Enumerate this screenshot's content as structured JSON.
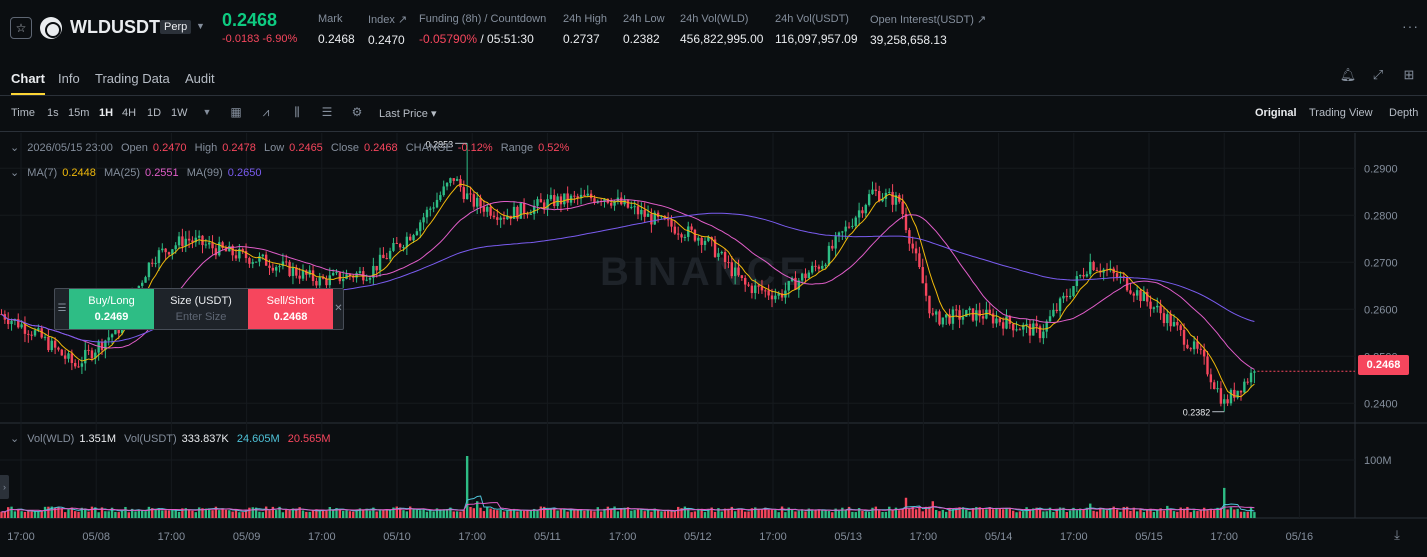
{
  "header": {
    "symbol": "WLDUSDT",
    "contract_type": "Perp",
    "last_price": "0.2468",
    "change": "-0.0183",
    "change_pct": "-6.90%",
    "stats": [
      {
        "label": "Mark",
        "value": "0.2468"
      },
      {
        "label": "Index ↗",
        "value": "0.2470"
      },
      {
        "label": "Funding (8h) / Countdown",
        "value_red": "-0.05790%",
        "value": "/ 05:51:30"
      },
      {
        "label": "24h High",
        "value": "0.2737"
      },
      {
        "label": "24h Low",
        "value": "0.2382"
      },
      {
        "label": "24h Vol(WLD)",
        "value": "456,822,995.00"
      },
      {
        "label": "24h Vol(USDT)",
        "value": "116,097,957.09"
      },
      {
        "label": "Open Interest(USDT) ↗",
        "value": "39,258,658.13"
      }
    ],
    "more": "···"
  },
  "tabs": [
    "Chart",
    "Info",
    "Trading Data",
    "Audit"
  ],
  "toolbar": {
    "intervals": [
      "Time",
      "1s",
      "15m",
      "1H",
      "4H",
      "1D",
      "1W"
    ],
    "active_interval": "1H",
    "price_type": "Last Price ▾",
    "views": [
      "Original",
      "Trading View",
      "Depth"
    ],
    "active_view": "Original"
  },
  "ohlc_legend": {
    "datetime": "2026/05/15 23:00",
    "open_label": "Open",
    "open": "0.2470",
    "high_label": "High",
    "high": "0.2478",
    "low_label": "Low",
    "low": "0.2465",
    "close_label": "Close",
    "close": "0.2468",
    "change_label": "CHANGE",
    "change": "-0.12%",
    "range_label": "Range",
    "range": "0.52%"
  },
  "ma_legend": {
    "ma7_label": "MA(7)",
    "ma7": "0.2448",
    "ma25_label": "MA(25)",
    "ma25": "0.2551",
    "ma99_label": "MA(99)",
    "ma99": "0.2650"
  },
  "vol_legend": {
    "vol_wld_label": "Vol(WLD)",
    "vol_wld": "1.351M",
    "vol_usdt_label": "Vol(USDT)",
    "vol_usdt": "333.837K",
    "ma5": "24.605M",
    "ma10": "20.565M"
  },
  "trade_panel": {
    "buy_label": "Buy/Long",
    "buy_price": "0.2469",
    "size_label": "Size (USDT)",
    "size_placeholder": "Enter Size",
    "sell_label": "Sell/Short",
    "sell_price": "0.2468"
  },
  "chart_data": {
    "type": "candlestick",
    "price_axis": {
      "ticks": [
        "0.2900",
        "0.2800",
        "0.2700",
        "0.2600",
        "0.2500",
        "0.2400"
      ],
      "range": [
        0.2358,
        0.2975
      ]
    },
    "volume_axis": {
      "ticks": [
        "100M"
      ]
    },
    "time_axis": {
      "ticks": [
        "17:00",
        "05/08",
        "17:00",
        "05/09",
        "17:00",
        "05/10",
        "17:00",
        "05/11",
        "17:00",
        "05/12",
        "17:00",
        "05/13",
        "17:00",
        "05/14",
        "17:00",
        "05/15",
        "17:00",
        "05/16"
      ]
    },
    "current_price": "0.2468",
    "annotations": [
      {
        "label": "0.2953",
        "value": 0.2953
      },
      {
        "label": "0.2382",
        "value": 0.2382
      }
    ],
    "price_anchors": [
      [
        0,
        0.259
      ],
      [
        10,
        0.255
      ],
      [
        22,
        0.248
      ],
      [
        35,
        0.256
      ],
      [
        45,
        0.271
      ],
      [
        55,
        0.275
      ],
      [
        68,
        0.272
      ],
      [
        80,
        0.27
      ],
      [
        95,
        0.266
      ],
      [
        110,
        0.268
      ],
      [
        122,
        0.276
      ],
      [
        135,
        0.288
      ],
      [
        140,
        0.283
      ],
      [
        150,
        0.28
      ],
      [
        165,
        0.283
      ],
      [
        180,
        0.284
      ],
      [
        195,
        0.279
      ],
      [
        210,
        0.275
      ],
      [
        222,
        0.265
      ],
      [
        232,
        0.263
      ],
      [
        245,
        0.27
      ],
      [
        260,
        0.285
      ],
      [
        268,
        0.283
      ],
      [
        278,
        0.258
      ],
      [
        292,
        0.259
      ],
      [
        310,
        0.255
      ],
      [
        325,
        0.27
      ],
      [
        335,
        0.266
      ],
      [
        348,
        0.258
      ],
      [
        358,
        0.25
      ],
      [
        365,
        0.24
      ],
      [
        374,
        0.2468
      ]
    ],
    "volume_spikes": [
      [
        139,
        100
      ],
      [
        142,
        22
      ],
      [
        278,
        22
      ],
      [
        270,
        28
      ],
      [
        295,
        12
      ],
      [
        325,
        18
      ],
      [
        348,
        14
      ],
      [
        365,
        45
      ]
    ],
    "series": [
      {
        "name": "MA(7)",
        "color": "#f0b90b"
      },
      {
        "name": "MA(25)",
        "color": "#e05dc8"
      },
      {
        "name": "MA(99)",
        "color": "#7a5cf0"
      }
    ],
    "volume_ma": [
      {
        "color": "#4fc3d9"
      },
      {
        "color": "#e05dc8"
      }
    ],
    "up_color": "#2ebd85",
    "down_color": "#f6465d",
    "watermark": "BINANCE"
  }
}
